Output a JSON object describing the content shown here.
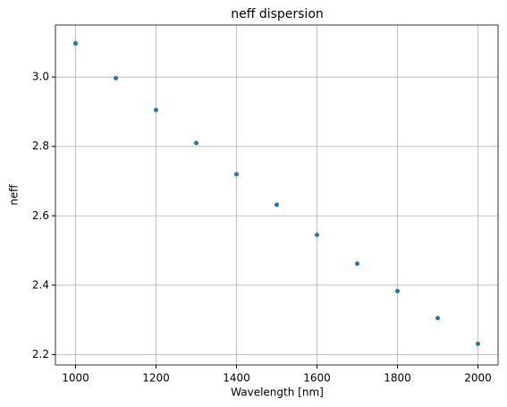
{
  "chart_data": {
    "type": "scatter",
    "title": "neff dispersion",
    "xlabel": "Wavelength [nm]",
    "ylabel": "neff",
    "series": [
      {
        "color": "#1f77b4",
        "x": [
          1000,
          1100,
          1200,
          1300,
          1400,
          1500,
          1600,
          1700,
          1800,
          1900,
          2000
        ],
        "values": [
          3.097,
          2.997,
          2.905,
          2.81,
          2.72,
          2.632,
          2.545,
          2.462,
          2.383,
          2.305,
          2.231
        ]
      }
    ],
    "xlim": [
      950,
      2050
    ],
    "ylim": [
      2.17,
      3.15
    ],
    "xticks": [
      1000,
      1200,
      1400,
      1600,
      1800,
      2000
    ],
    "yticks": [
      2.2,
      2.4,
      2.6,
      2.8,
      {
        "value": 3,
        "label": "3.0"
      }
    ],
    "grid": true
  }
}
